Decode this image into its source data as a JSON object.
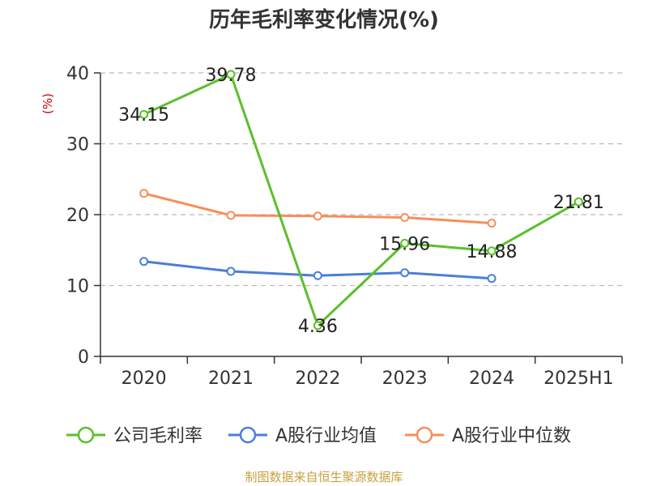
{
  "chart_data": {
    "type": "line",
    "title": "历年毛利率变化情况(%)",
    "ylabel": "(%)",
    "categories": [
      "2020",
      "2021",
      "2022",
      "2023",
      "2024",
      "2025H1"
    ],
    "ylim": [
      0,
      40
    ],
    "yticks": [
      0,
      10,
      20,
      30,
      40
    ],
    "grid": true,
    "legend_position": "bottom",
    "series": [
      {
        "name": "公司毛利率",
        "color": "#5ac02a",
        "values": [
          34.15,
          39.78,
          4.36,
          15.96,
          14.88,
          21.81
        ],
        "labels": [
          "34.15",
          "39.78",
          "4.36",
          "15.96",
          "14.88",
          "21.81"
        ]
      },
      {
        "name": "A股行业均值",
        "color": "#4a7fd8",
        "values": [
          13.4,
          12.0,
          11.4,
          11.8,
          11.0,
          null
        ]
      },
      {
        "name": "A股行业中位数",
        "color": "#f58f5a",
        "values": [
          23.0,
          19.9,
          19.8,
          19.6,
          18.8,
          null
        ]
      }
    ]
  },
  "source": "制图数据来自恒生聚源数据库"
}
